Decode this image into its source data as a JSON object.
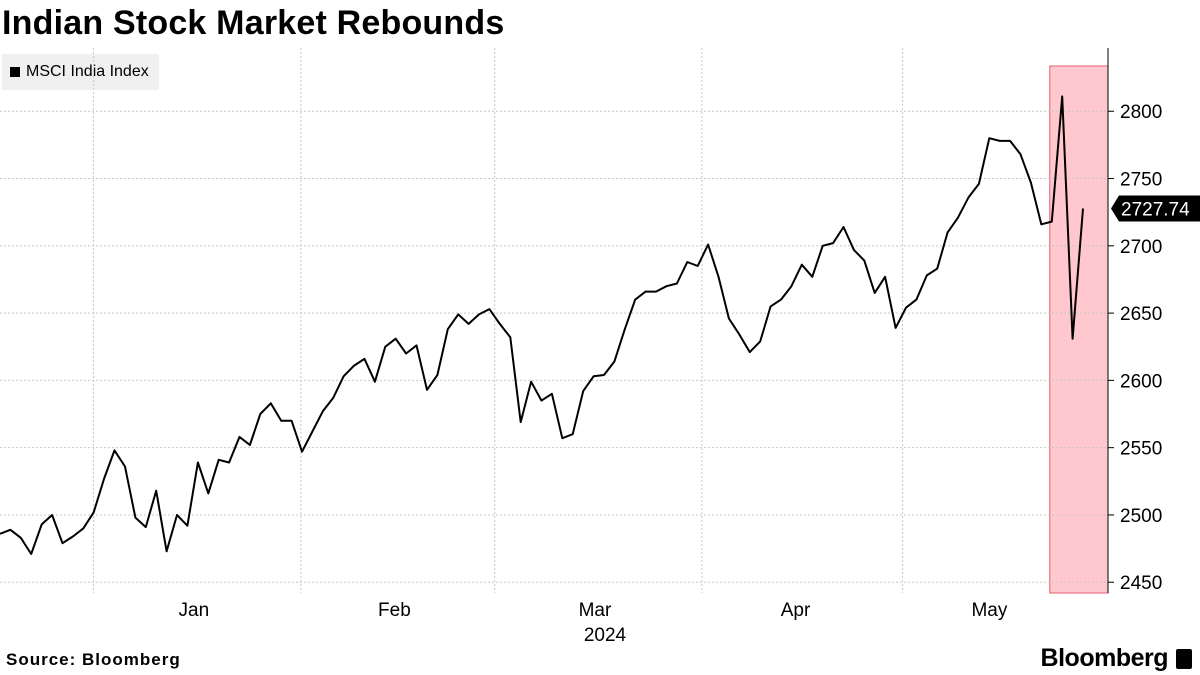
{
  "title": "Indian Stock Market Rebounds",
  "source": "Source: Bloomberg",
  "brand": "Bloomberg",
  "colors": {
    "line": "#000000",
    "highlight_fill": "#ffc7ce",
    "highlight_stroke": "#e36070",
    "grid": "#c8c8c8",
    "legend_bg": "#f0f0f0"
  },
  "chart_data": {
    "type": "line",
    "series": [
      {
        "name": "MSCI India Index",
        "values": [
          2486,
          2489,
          2483,
          2471,
          2493,
          2500,
          2479,
          2484,
          2490,
          2502,
          2527,
          2548,
          2536,
          2498,
          2491,
          2518,
          2473,
          2500,
          2492,
          2539,
          2516,
          2541,
          2539,
          2558,
          2552,
          2575,
          2583,
          2570,
          2570,
          2547,
          2562,
          2577,
          2587,
          2603,
          2611,
          2616,
          2599,
          2625,
          2631,
          2620,
          2626,
          2593,
          2604,
          2638,
          2649,
          2642,
          2649,
          2653,
          2642,
          2632,
          2569,
          2599,
          2585,
          2590,
          2557,
          2560,
          2592,
          2603,
          2604,
          2614,
          2638,
          2660,
          2666,
          2666,
          2670,
          2672,
          2688,
          2685,
          2701,
          2677,
          2646,
          2634,
          2621,
          2629,
          2655,
          2660,
          2670,
          2686,
          2677,
          2700,
          2702,
          2714,
          2697,
          2689,
          2665,
          2677,
          2639,
          2654,
          2660,
          2678,
          2683,
          2710,
          2721,
          2736,
          2746,
          2780,
          2778,
          2778,
          2768,
          2747,
          2716,
          2718,
          2811,
          2631,
          2727.74
        ]
      }
    ],
    "x_labels": [
      "Jan",
      "Feb",
      "Mar",
      "Apr",
      "May"
    ],
    "x_year": "2024",
    "y_ticks": [
      2450,
      2500,
      2550,
      2600,
      2650,
      2700,
      2750,
      2800
    ],
    "ylim": [
      2442,
      2847
    ],
    "last_value_label": "2727.74",
    "highlight_start_index": 101,
    "grid": true,
    "legend_position": "top-left"
  }
}
